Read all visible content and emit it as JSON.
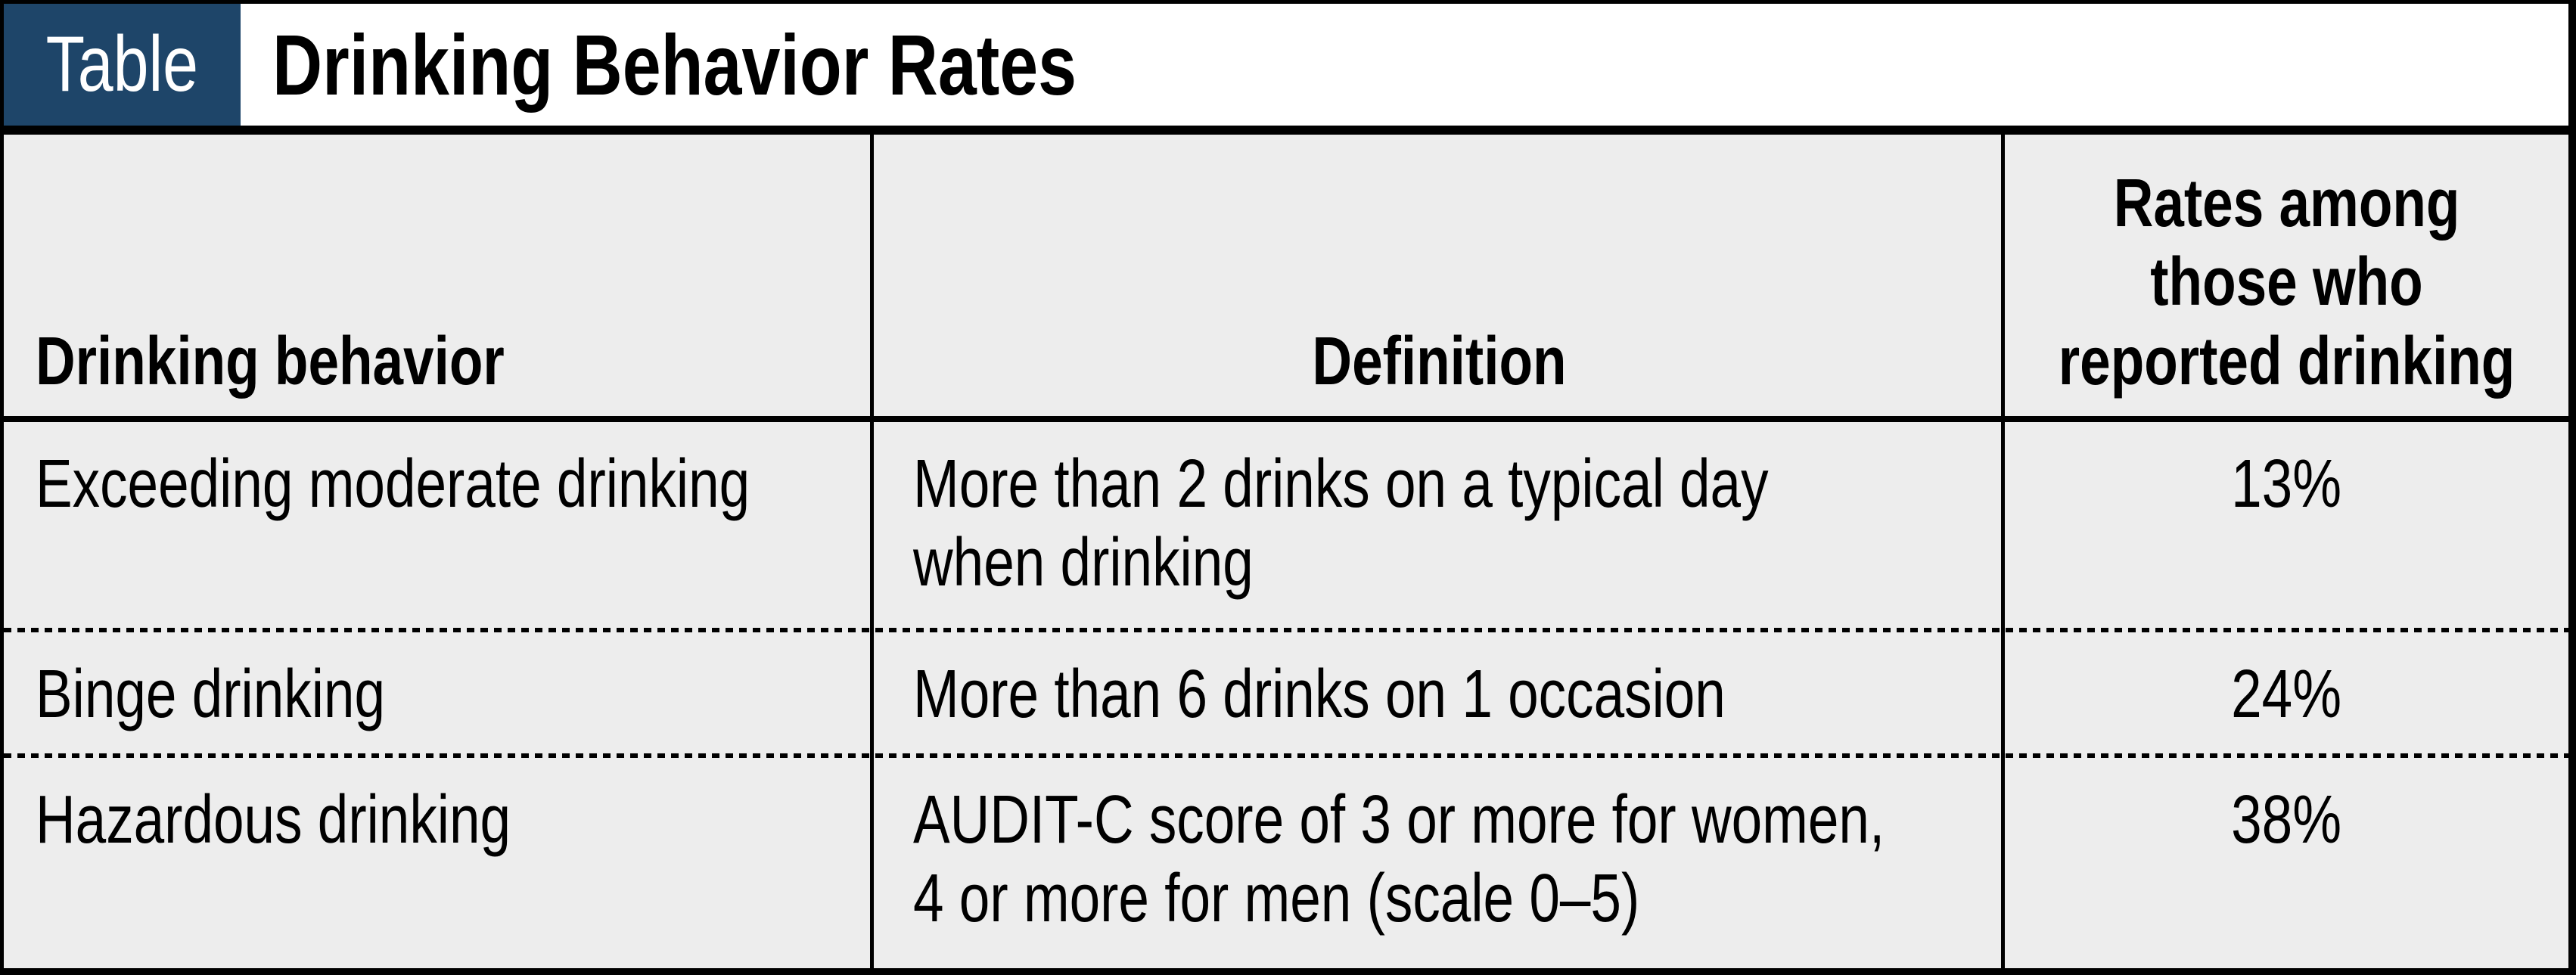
{
  "header": {
    "tag": "Table",
    "title": "Drinking Behavior Rates"
  },
  "table": {
    "headers": [
      {
        "label": "Drinking behavior"
      },
      {
        "label": "Definition"
      },
      {
        "label": "Rates among those who reported drinking",
        "label_lines": [
          "Rates among",
          "those who",
          "reported drinking"
        ]
      }
    ],
    "rows": [
      {
        "behavior": "Exceeding moderate drinking",
        "definition": "More than 2 drinks on a typical day when drinking",
        "definition_lines": [
          "More than 2 drinks on a typical day",
          "when drinking"
        ],
        "rate": "13%"
      },
      {
        "behavior": "Binge drinking",
        "definition": "More than 6 drinks on 1 occasion",
        "definition_lines": [
          "More than 6 drinks on 1 occasion"
        ],
        "rate": "24%"
      },
      {
        "behavior": "Hazardous drinking",
        "definition": "AUDIT-C score of 3 or more for women, 4 or more for men (scale 0–5)",
        "definition_lines": [
          "AUDIT-C score of 3 or more for women,",
          "4 or more for men (scale 0–5)"
        ],
        "rate": "38%"
      }
    ]
  },
  "colors": {
    "tag_background": "#1e4569",
    "tag_text": "#ffffff",
    "cell_background": "#ededed",
    "border": "#000000",
    "title_background": "#ffffff"
  },
  "chart_data": {
    "type": "table",
    "title": "Drinking Behavior Rates",
    "columns": [
      "Drinking behavior",
      "Definition",
      "Rates among those who reported drinking"
    ],
    "rows": [
      [
        "Exceeding moderate drinking",
        "More than 2 drinks on a typical day when drinking",
        "13%"
      ],
      [
        "Binge drinking",
        "More than 6 drinks on 1 occasion",
        "24%"
      ],
      [
        "Hazardous drinking",
        "AUDIT-C score of 3 or more for women, 4 or more for men (scale 0–5)",
        "38%"
      ]
    ]
  }
}
